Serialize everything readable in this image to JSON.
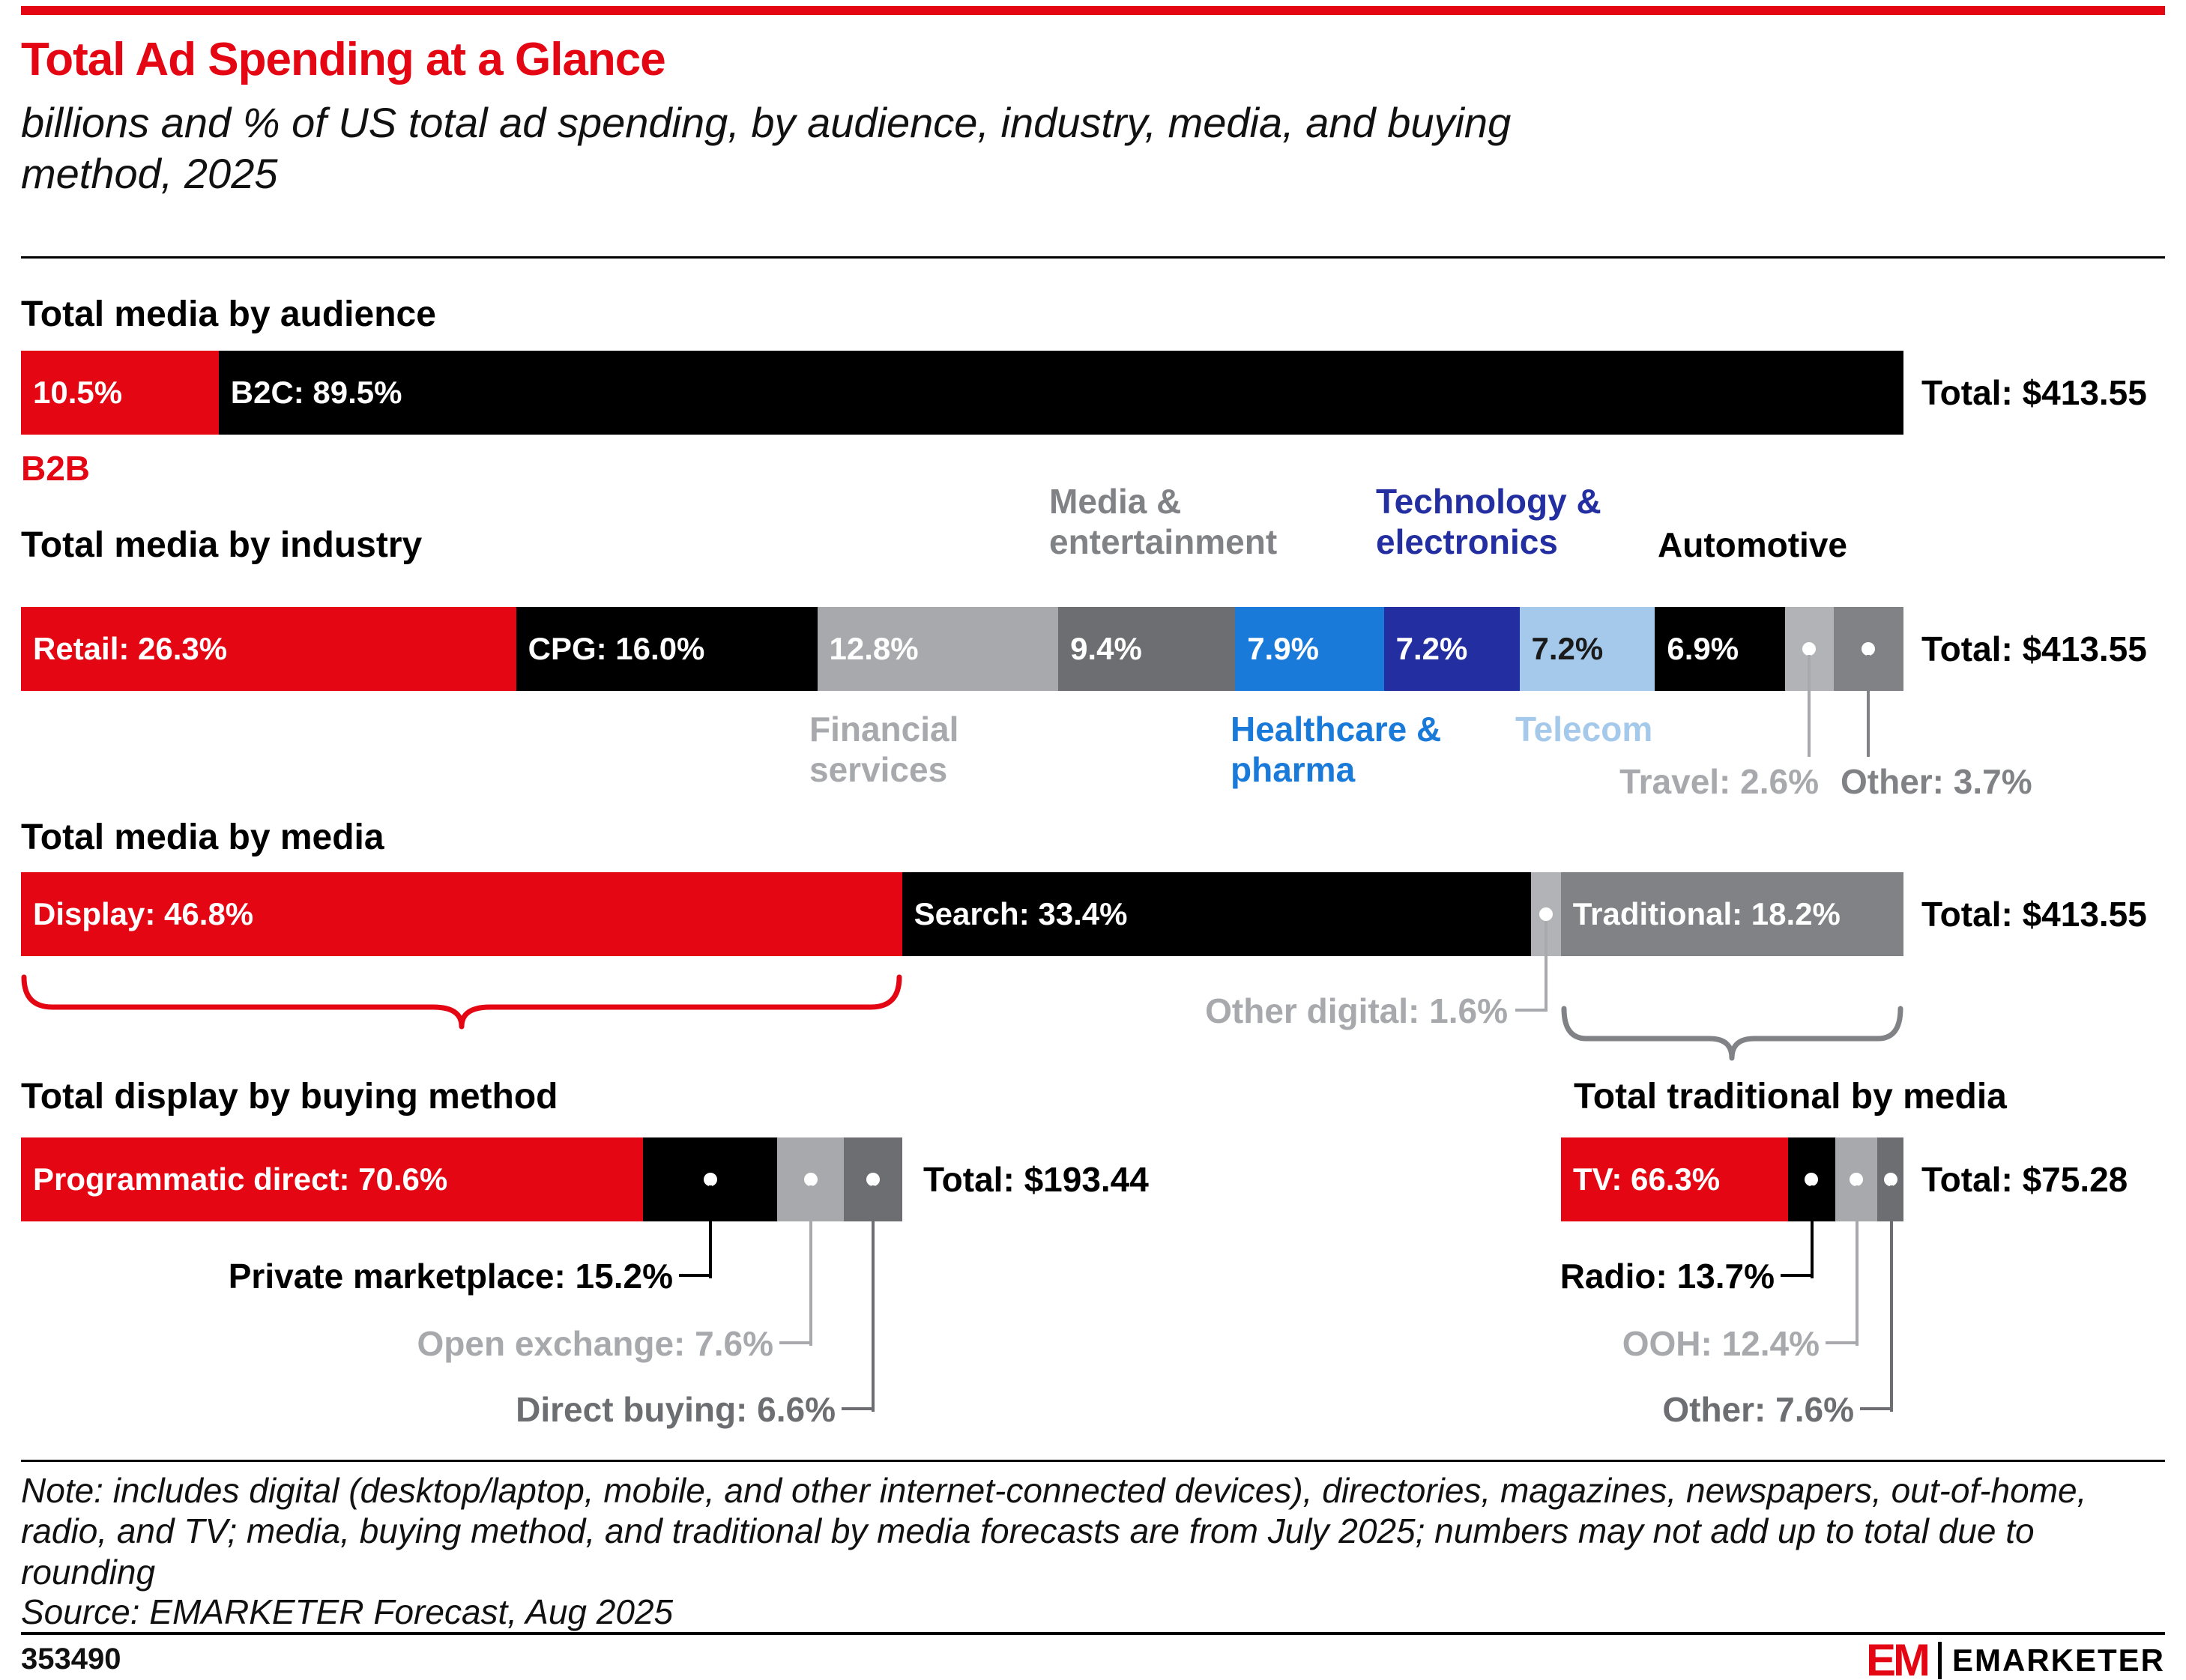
{
  "header": {
    "title": "Total Ad Spending at a Glance",
    "subtitle": "billions and % of US total ad spending, by audience, industry, media, and buying method, 2025"
  },
  "colors": {
    "accent_red": "#e40613",
    "black": "#000000",
    "gray_dark": "#6d6e71",
    "gray_mid": "#808285",
    "gray_light": "#a7a9ac",
    "gray_pale": "#b1b3b6",
    "blue_bright": "#1a7ad9",
    "blue_dark": "#232fa0",
    "blue_light": "#a5c9ea"
  },
  "chart_data": [
    {
      "type": "bar",
      "stacked": true,
      "section_title": "Total media by audience",
      "unit": "% of US total ad spending",
      "total_billions": 413.55,
      "total_label": "Total: $413.55",
      "segments": [
        {
          "id": "b2b",
          "name": "B2B",
          "value": 10.5,
          "bar_label": "10.5%",
          "callout": "B2B",
          "callout_color": "#e40613",
          "color": "#e40613",
          "text_color": "#ffffff"
        },
        {
          "id": "b2c",
          "name": "B2C",
          "value": 89.5,
          "bar_label": "B2C: 89.5%",
          "color": "#000000",
          "text_color": "#ffffff"
        }
      ]
    },
    {
      "type": "bar",
      "stacked": true,
      "section_title": "Total media by industry",
      "unit": "% of US total ad spending",
      "total_billions": 413.55,
      "total_label": "Total: $413.55",
      "segments": [
        {
          "id": "retail",
          "name": "Retail",
          "value": 26.3,
          "bar_label": "Retail: 26.3%",
          "color": "#e40613",
          "text_color": "#ffffff"
        },
        {
          "id": "cpg",
          "name": "CPG",
          "value": 16.0,
          "bar_label": "CPG: 16.0%",
          "color": "#000000",
          "text_color": "#ffffff"
        },
        {
          "id": "financial-services",
          "name": "Financial services",
          "value": 12.8,
          "bar_label": "12.8%",
          "callout": "Financial services",
          "callout_color": "#a7a9ac",
          "color": "#a7a9ac",
          "text_color": "#ffffff"
        },
        {
          "id": "media-entertainment",
          "name": "Media & entertainment",
          "value": 9.4,
          "bar_label": "9.4%",
          "callout": "Media & entertainment",
          "callout_color": "#808285",
          "color": "#6d6e71",
          "text_color": "#ffffff"
        },
        {
          "id": "healthcare-pharma",
          "name": "Healthcare & pharma",
          "value": 7.9,
          "bar_label": "7.9%",
          "callout": "Healthcare & pharma",
          "callout_color": "#1a7ad9",
          "color": "#1a7ad9",
          "text_color": "#ffffff"
        },
        {
          "id": "technology-electronics",
          "name": "Technology & electronics",
          "value": 7.2,
          "bar_label": "7.2%",
          "callout": "Technology & electronics",
          "callout_color": "#232fa0",
          "color": "#232fa0",
          "text_color": "#ffffff"
        },
        {
          "id": "telecom",
          "name": "Telecom",
          "value": 7.2,
          "bar_label": "7.2%",
          "callout": "Telecom",
          "callout_color": "#a5c9ea",
          "color": "#a5c9ea",
          "text_color": "#1a1a1a"
        },
        {
          "id": "automotive",
          "name": "Automotive",
          "value": 6.9,
          "bar_label": "6.9%",
          "callout": "Automotive",
          "callout_color": "#000000",
          "color": "#000000",
          "text_color": "#ffffff"
        },
        {
          "id": "travel",
          "name": "Travel",
          "value": 2.6,
          "callout": "Travel: 2.6%",
          "callout_color": "#a7a9ac",
          "color": "#b1b3b6",
          "dot": true
        },
        {
          "id": "other-industry",
          "name": "Other",
          "value": 3.7,
          "callout": "Other: 3.7%",
          "callout_color": "#808285",
          "color": "#808285",
          "dot": true
        }
      ]
    },
    {
      "type": "bar",
      "stacked": true,
      "section_title": "Total media by media",
      "unit": "% of US total ad spending",
      "total_billions": 413.55,
      "total_label": "Total: $413.55",
      "segments": [
        {
          "id": "display",
          "name": "Display",
          "value": 46.8,
          "bar_label": "Display: 46.8%",
          "color": "#e40613",
          "text_color": "#ffffff"
        },
        {
          "id": "search",
          "name": "Search",
          "value": 33.4,
          "bar_label": "Search: 33.4%",
          "color": "#000000",
          "text_color": "#ffffff"
        },
        {
          "id": "other-digital",
          "name": "Other digital",
          "value": 1.6,
          "callout": "Other digital: 1.6%",
          "callout_color": "#a7a9ac",
          "color": "#b1b3b6",
          "dot": true
        },
        {
          "id": "traditional",
          "name": "Traditional",
          "value": 18.2,
          "bar_label": "Traditional: 18.2%",
          "color": "#808285",
          "text_color": "#ffffff"
        }
      ]
    },
    {
      "type": "bar",
      "stacked": true,
      "section_title": "Total display by buying method",
      "unit": "% of US display ad spending",
      "total_billions": 193.44,
      "total_label": "Total: $193.44",
      "segments": [
        {
          "id": "programmatic-direct",
          "name": "Programmatic direct",
          "value": 70.6,
          "bar_label": "Programmatic direct: 70.6%",
          "color": "#e40613",
          "text_color": "#ffffff"
        },
        {
          "id": "private-marketplace",
          "name": "Private marketplace",
          "value": 15.2,
          "callout": "Private marketplace: 15.2%",
          "callout_color": "#000000",
          "color": "#000000",
          "dot": true
        },
        {
          "id": "open-exchange",
          "name": "Open exchange",
          "value": 7.6,
          "callout": "Open exchange: 7.6%",
          "callout_color": "#a7a9ac",
          "color": "#a7a9ac",
          "dot": true
        },
        {
          "id": "direct-buying",
          "name": "Direct buying",
          "value": 6.6,
          "callout": "Direct buying: 6.6%",
          "callout_color": "#6d6e71",
          "color": "#6d6e71",
          "dot": true
        }
      ]
    },
    {
      "type": "bar",
      "stacked": true,
      "section_title": "Total traditional by media",
      "unit": "% of US traditional ad spending",
      "total_billions": 75.28,
      "total_label": "Total: $75.28",
      "segments": [
        {
          "id": "tv",
          "name": "TV",
          "value": 66.3,
          "bar_label": "TV: 66.3%",
          "color": "#e40613",
          "text_color": "#ffffff"
        },
        {
          "id": "radio",
          "name": "Radio",
          "value": 13.7,
          "callout": "Radio: 13.7%",
          "callout_color": "#000000",
          "color": "#000000",
          "dot": true
        },
        {
          "id": "ooh",
          "name": "OOH",
          "value": 12.4,
          "callout": "OOH: 12.4%",
          "callout_color": "#a7a9ac",
          "color": "#a7a9ac",
          "dot": true
        },
        {
          "id": "other-traditional",
          "name": "Other",
          "value": 7.6,
          "callout": "Other: 7.6%",
          "callout_color": "#6d6e71",
          "color": "#6d6e71",
          "dot": true
        }
      ]
    }
  ],
  "footer": {
    "note": "Note: includes digital (desktop/laptop, mobile, and other internet-connected devices), directories, magazines, newspapers, out-of-home, radio, and TV; media, buying method, and traditional by media forecasts are from July 2025; numbers may not add up to total due to rounding",
    "source": "Source: EMARKETER Forecast, Aug 2025",
    "chart_id": "353490",
    "logo_em": "EM",
    "logo_name": "EMARKETER"
  }
}
